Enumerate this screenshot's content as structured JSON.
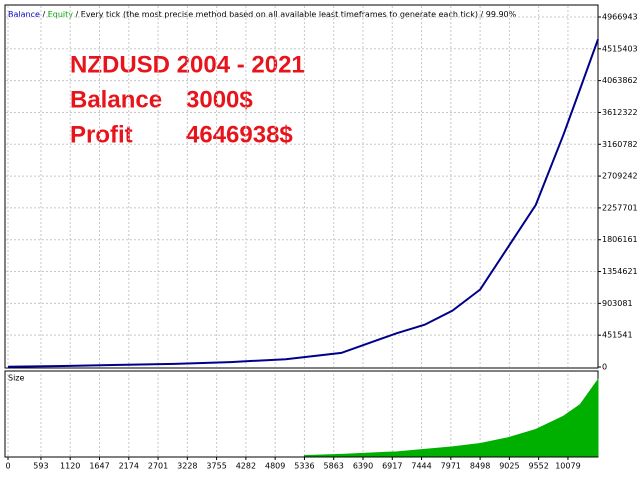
{
  "header": {
    "items": [
      {
        "text": "Balance",
        "color": "#0000c0"
      },
      {
        "text": " / ",
        "color": "#000000"
      },
      {
        "text": "Equity",
        "color": "#00a000"
      },
      {
        "text": " / Every tick (the most precise method based on all available least timeframes to generate each tick) / 99.90%",
        "color": "#000000"
      }
    ]
  },
  "chart_data": [
    {
      "type": "line",
      "annotations": [
        "NZDUSD 2004 - 2021",
        "Balance",
        "3000$",
        "Profit",
        "4646938$"
      ],
      "x": [
        0,
        1000,
        2000,
        3000,
        4000,
        5000,
        6000,
        7000,
        7500,
        8000,
        8500,
        9000,
        9500,
        10000,
        10300,
        10620
      ],
      "series": [
        {
          "color": "#00008b",
          "values": [
            3000,
            15000,
            30000,
            45000,
            70000,
            110000,
            200000,
            480000,
            600000,
            800000,
            1100000,
            1700000,
            2300000,
            3300000,
            3950000,
            4649938
          ]
        }
      ],
      "xlim": [
        0,
        10620
      ],
      "xticks": [
        0,
        593,
        1120,
        1647,
        2174,
        2701,
        3228,
        3755,
        4282,
        4809,
        5336,
        5863,
        6390,
        6917,
        7444,
        7971,
        8498,
        9025,
        9552,
        10079
      ],
      "ylim": [
        0,
        5137000
      ],
      "yticks": [
        0,
        451541,
        903081,
        1354621,
        1806161,
        2257701,
        2709242,
        3160782,
        3612322,
        4063862,
        4515403,
        4966943
      ],
      "grid": true
    },
    {
      "type": "area",
      "title": "Size",
      "x": [
        5336,
        6000,
        7000,
        7500,
        8000,
        8500,
        9000,
        9500,
        10000,
        10300,
        10620
      ],
      "series": [
        {
          "color": "#00b000",
          "values": [
            0.5,
            2,
            5,
            8,
            11,
            15,
            22,
            32,
            48,
            62,
            92
          ]
        }
      ],
      "xlim": [
        0,
        10620
      ],
      "ylim": [
        0,
        100
      ],
      "grid": true
    }
  ]
}
